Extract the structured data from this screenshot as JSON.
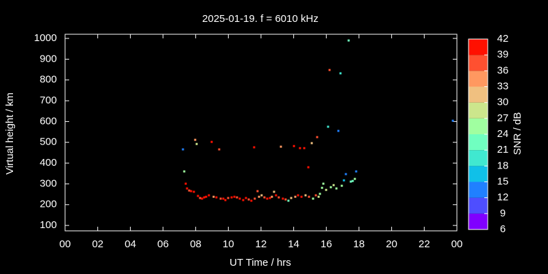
{
  "chart_data": {
    "type": "scatter",
    "title": "2025-01-19. f = 6010 kHz",
    "xlabel": "UT Time / hrs",
    "ylabel": "Virtual height / km",
    "xlim": [
      0,
      24
    ],
    "ylim": [
      74,
      1020
    ],
    "xticks": [
      {
        "value": 0,
        "label": "00"
      },
      {
        "value": 2,
        "label": "02"
      },
      {
        "value": 4,
        "label": "04"
      },
      {
        "value": 6,
        "label": "06"
      },
      {
        "value": 8,
        "label": "08"
      },
      10,
      12,
      14,
      16,
      18,
      20,
      22,
      {
        "value": 24,
        "label": "00"
      }
    ],
    "yticks": [
      100,
      200,
      300,
      400,
      500,
      600,
      700,
      800,
      900,
      1000
    ],
    "x": [
      7.22,
      7.3,
      7.39,
      7.47,
      7.6,
      7.72,
      7.89,
      7.97,
      8.06,
      8.14,
      8.27,
      8.39,
      8.52,
      8.64,
      8.81,
      8.98,
      9.1,
      9.27,
      9.44,
      9.53,
      9.69,
      9.82,
      9.99,
      10.2,
      10.37,
      10.53,
      10.7,
      10.91,
      11.08,
      11.25,
      11.41,
      11.58,
      11.62,
      11.79,
      11.88,
      12.04,
      12.21,
      12.38,
      12.55,
      12.67,
      12.8,
      12.92,
      13.09,
      13.22,
      13.34,
      13.51,
      13.68,
      13.85,
      14.02,
      14.1,
      14.27,
      14.39,
      14.48,
      14.65,
      14.73,
      14.9,
      14.94,
      15.11,
      15.19,
      15.36,
      15.44,
      15.53,
      15.61,
      15.74,
      15.82,
      15.99,
      16.11,
      16.2,
      16.28,
      16.45,
      16.62,
      16.74,
      16.87,
      16.95,
      17.08,
      17.2,
      17.37,
      17.5,
      17.62,
      17.75,
      17.83,
      23.75
    ],
    "values": [
      466,
      360,
      301,
      278,
      268,
      265,
      262,
      512,
      492,
      242,
      232,
      229,
      235,
      238,
      245,
      502,
      238,
      235,
      466,
      229,
      229,
      222,
      232,
      235,
      238,
      235,
      229,
      222,
      232,
      225,
      219,
      476,
      229,
      265,
      238,
      245,
      235,
      229,
      232,
      238,
      262,
      245,
      235,
      479,
      229,
      225,
      219,
      232,
      482,
      238,
      245,
      472,
      238,
      472,
      245,
      380,
      238,
      496,
      229,
      245,
      525,
      238,
      252,
      281,
      301,
      271,
      575,
      848,
      284,
      294,
      278,
      555,
      832,
      291,
      317,
      347,
      990,
      311,
      314,
      324,
      360,
      604
    ],
    "snr": [
      13,
      25,
      40,
      40,
      37,
      40,
      40,
      34,
      28,
      40,
      37,
      40,
      40,
      40,
      40,
      40,
      34,
      40,
      37,
      37,
      40,
      40,
      37,
      40,
      40,
      37,
      40,
      40,
      40,
      37,
      40,
      40,
      37,
      37,
      34,
      31,
      37,
      40,
      40,
      34,
      31,
      40,
      37,
      34,
      40,
      37,
      22,
      31,
      40,
      34,
      40,
      40,
      40,
      40,
      31,
      40,
      37,
      31,
      25,
      37,
      37,
      28,
      25,
      25,
      25,
      28,
      19,
      37,
      25,
      28,
      25,
      13,
      19,
      25,
      16,
      13,
      22,
      22,
      22,
      25,
      13,
      13
    ],
    "colorbar": {
      "label": "SNR / dB",
      "lim": [
        6,
        42
      ],
      "ticks": [
        6,
        9,
        12,
        15,
        18,
        21,
        24,
        27,
        30,
        33,
        36,
        39,
        42
      ],
      "colors": [
        "#8000ff",
        "#4e4eff",
        "#2080ff",
        "#10c0e8",
        "#40e8d0",
        "#70ffc0",
        "#a0ffa0",
        "#cce68c",
        "#f0c080",
        "#ff9860",
        "#ff5030",
        "#ff1000"
      ]
    }
  }
}
